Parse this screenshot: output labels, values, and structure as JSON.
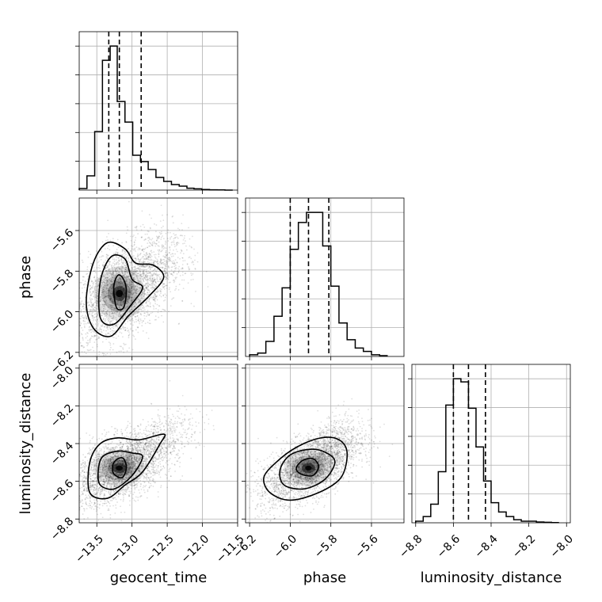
{
  "chart_data": {
    "type": "corner",
    "parameters": [
      "geocent_time",
      "phase",
      "luminosity_distance"
    ],
    "grid": true,
    "ranges": {
      "geocent_time": [
        -13.75,
        -11.5
      ],
      "phase": [
        -6.22,
        -5.44
      ],
      "luminosity_distance": [
        -8.82,
        -7.98
      ]
    },
    "tick_labels": {
      "geocent_time": [
        "−13.5",
        "−13.0",
        "−12.5",
        "−12.0",
        "−11.5"
      ],
      "phase": [
        "−6.2",
        "−6.0",
        "−5.8",
        "−5.6"
      ],
      "luminosity_distance": [
        "−8.8",
        "−8.6",
        "−8.4",
        "−8.2",
        "−8.0"
      ]
    },
    "tick_values": {
      "geocent_time": [
        -13.5,
        -13.0,
        -12.5,
        -12.0,
        -11.5
      ],
      "phase": [
        -6.2,
        -6.0,
        -5.8,
        -5.6
      ],
      "luminosity_distance": [
        -8.8,
        -8.6,
        -8.4,
        -8.2,
        -8.0
      ]
    },
    "quantiles": {
      "geocent_time": [
        -13.33,
        -13.18,
        -12.87
      ],
      "phase": [
        -6.0,
        -5.91,
        -5.81
      ],
      "luminosity_distance": [
        -8.6,
        -8.52,
        -8.43
      ]
    },
    "histograms": {
      "geocent_time": {
        "edges": [
          -13.75,
          -13.64,
          -13.53,
          -13.42,
          -13.31,
          -13.21,
          -13.1,
          -12.99,
          -12.88,
          -12.77,
          -12.66,
          -12.55,
          -12.44,
          -12.33,
          -12.22,
          -12.12,
          -12.01,
          -11.9,
          -11.79,
          -11.68,
          -11.57
        ],
        "counts": [
          0.01,
          0.09,
          0.37,
          0.82,
          0.91,
          0.56,
          0.43,
          0.22,
          0.18,
          0.13,
          0.08,
          0.055,
          0.035,
          0.025,
          0.012,
          0.008,
          0.004,
          0.002,
          0.001,
          0.0
        ]
      },
      "phase": {
        "edges": [
          -6.2,
          -6.16,
          -6.12,
          -6.08,
          -6.04,
          -6.0,
          -5.96,
          -5.92,
          -5.88,
          -5.84,
          -5.8,
          -5.76,
          -5.72,
          -5.68,
          -5.64,
          -5.6,
          -5.56,
          -5.52
        ],
        "counts": [
          0.01,
          0.02,
          0.09,
          0.24,
          0.41,
          0.64,
          0.8,
          0.86,
          0.86,
          0.66,
          0.42,
          0.2,
          0.1,
          0.05,
          0.03,
          0.01,
          0.005
        ]
      },
      "luminosity_distance": {
        "edges": [
          -8.8,
          -8.76,
          -8.72,
          -8.68,
          -8.64,
          -8.6,
          -8.56,
          -8.52,
          -8.48,
          -8.44,
          -8.4,
          -8.36,
          -8.32,
          -8.28,
          -8.24,
          -8.2,
          -8.16,
          -8.12,
          -8.08,
          -8.04
        ],
        "counts": [
          0.01,
          0.04,
          0.12,
          0.33,
          0.76,
          0.93,
          0.91,
          0.74,
          0.49,
          0.27,
          0.13,
          0.07,
          0.04,
          0.02,
          0.01,
          0.01,
          0.005,
          0.003,
          0.001
        ]
      }
    },
    "joint": [
      {
        "x": "geocent_time",
        "y": "phase",
        "mode": [
          -13.18,
          -5.91
        ],
        "spread": [
          0.3,
          0.11
        ],
        "rho": 0.5,
        "tail_to": [
          -12.3,
          -5.7
        ],
        "contours": [
          [
            [
              -13.22,
              -5.98
            ],
            [
              -13.12,
              -5.98
            ],
            [
              -13.08,
              -5.9
            ],
            [
              -13.12,
              -5.84
            ],
            [
              -13.2,
              -5.82
            ],
            [
              -13.26,
              -5.88
            ]
          ],
          [
            [
              -13.45,
              -6.03
            ],
            [
              -13.25,
              -6.06
            ],
            [
              -13.0,
              -5.96
            ],
            [
              -12.85,
              -5.88
            ],
            [
              -13.0,
              -5.84
            ],
            [
              -13.1,
              -5.74
            ],
            [
              -13.3,
              -5.73
            ],
            [
              -13.45,
              -5.85
            ]
          ],
          [
            [
              -13.55,
              -6.08
            ],
            [
              -13.3,
              -6.12
            ],
            [
              -13.05,
              -6.02
            ],
            [
              -12.75,
              -5.92
            ],
            [
              -12.55,
              -5.83
            ],
            [
              -12.7,
              -5.77
            ],
            [
              -12.95,
              -5.76
            ],
            [
              -13.1,
              -5.69
            ],
            [
              -13.35,
              -5.66
            ],
            [
              -13.55,
              -5.76
            ],
            [
              -13.65,
              -5.95
            ]
          ]
        ]
      },
      {
        "x": "geocent_time",
        "y": "luminosity_distance",
        "mode": [
          -13.18,
          -8.53
        ],
        "spread": [
          0.3,
          0.08
        ],
        "rho": 0.55,
        "tail_to": [
          -12.2,
          -8.28
        ],
        "contours": [
          [
            [
              -13.26,
              -8.56
            ],
            [
              -13.14,
              -8.58
            ],
            [
              -13.08,
              -8.53
            ],
            [
              -13.12,
              -8.48
            ],
            [
              -13.2,
              -8.48
            ],
            [
              -13.27,
              -8.51
            ]
          ],
          [
            [
              -13.45,
              -8.62
            ],
            [
              -13.25,
              -8.64
            ],
            [
              -13.0,
              -8.57
            ],
            [
              -12.85,
              -8.47
            ],
            [
              -13.0,
              -8.45
            ],
            [
              -13.2,
              -8.44
            ],
            [
              -13.42,
              -8.47
            ],
            [
              -13.48,
              -8.55
            ]
          ],
          [
            [
              -13.6,
              -8.66
            ],
            [
              -13.35,
              -8.69
            ],
            [
              -13.1,
              -8.62
            ],
            [
              -12.85,
              -8.55
            ],
            [
              -12.6,
              -8.4
            ],
            [
              -12.55,
              -8.35
            ],
            [
              -12.9,
              -8.38
            ],
            [
              -13.2,
              -8.37
            ],
            [
              -13.45,
              -8.4
            ],
            [
              -13.6,
              -8.5
            ]
          ]
        ]
      },
      {
        "x": "phase",
        "y": "luminosity_distance",
        "mode": [
          -5.91,
          -8.53
        ],
        "spread": [
          0.1,
          0.08
        ],
        "rho": 0.62,
        "tail_to": [
          -5.7,
          -8.3
        ],
        "contours": [
          [
            [
              -5.95,
              -8.56
            ],
            [
              -5.89,
              -8.57
            ],
            [
              -5.86,
              -8.52
            ],
            [
              -5.89,
              -8.48
            ],
            [
              -5.94,
              -8.49
            ],
            [
              -5.97,
              -8.53
            ]
          ],
          [
            [
              -6.03,
              -8.62
            ],
            [
              -5.93,
              -8.64
            ],
            [
              -5.83,
              -8.59
            ],
            [
              -5.78,
              -8.5
            ],
            [
              -5.82,
              -8.45
            ],
            [
              -5.9,
              -8.43
            ],
            [
              -6.0,
              -8.46
            ],
            [
              -6.05,
              -8.54
            ]
          ],
          [
            [
              -6.1,
              -8.66
            ],
            [
              -6.0,
              -8.7
            ],
            [
              -5.86,
              -8.66
            ],
            [
              -5.75,
              -8.58
            ],
            [
              -5.72,
              -8.45
            ],
            [
              -5.76,
              -8.38
            ],
            [
              -5.85,
              -8.37
            ],
            [
              -5.97,
              -8.42
            ],
            [
              -6.07,
              -8.5
            ],
            [
              -6.13,
              -8.58
            ]
          ]
        ]
      }
    ]
  }
}
